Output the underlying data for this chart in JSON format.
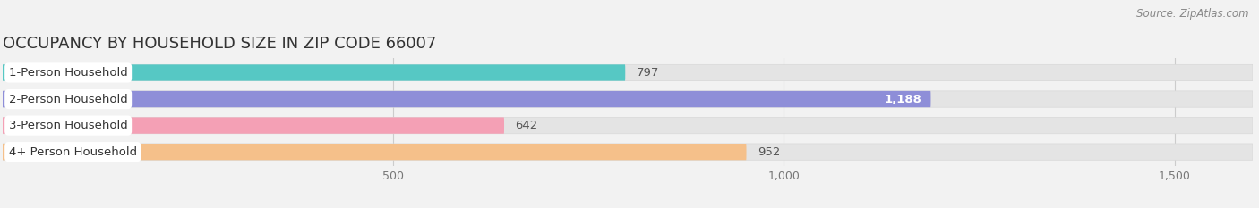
{
  "title": "OCCUPANCY BY HOUSEHOLD SIZE IN ZIP CODE 66007",
  "source": "Source: ZipAtlas.com",
  "categories": [
    "1-Person Household",
    "2-Person Household",
    "3-Person Household",
    "4+ Person Household"
  ],
  "values": [
    797,
    1188,
    642,
    952
  ],
  "bar_colors": [
    "#56c8c4",
    "#8e8ed8",
    "#f4a0b5",
    "#f5c08a"
  ],
  "background_color": "#f2f2f2",
  "bar_background_color": "#e4e4e4",
  "xlim_max": 1600,
  "xticks": [
    500,
    1000,
    1500
  ],
  "xtick_labels": [
    "500",
    "1,000",
    "1,500"
  ],
  "label_fontsize": 9.5,
  "title_fontsize": 13,
  "source_fontsize": 8.5
}
